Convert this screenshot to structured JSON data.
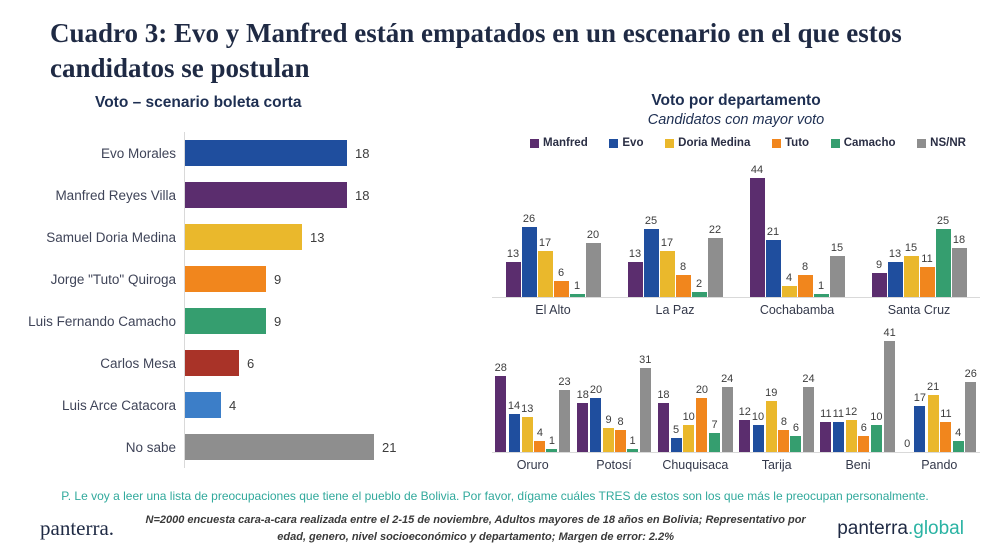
{
  "slide": {
    "title": "Cuadro 3: Evo y Manfred están empatados en un escenario en el que estos candidatos se postulan",
    "question_note": "P. Le voy a leer una lista de preocupaciones que tiene el pueblo de Bolivia. Por favor, dígame cuáles TRES de estos son los que más le preocupan personalmente.",
    "footer": {
      "logo_left": "panterra.",
      "methodology": "N=2000 encuesta cara-a-cara realizada entre el 2-15 de noviembre, Adultos mayores de 18 años en Bolivia; Representativo por edad, genero, nivel socioeconómico y departamento; Margen de error: 2.2%",
      "logo_right_name": "panterra",
      "logo_right_tld": ".global"
    }
  },
  "colors": {
    "title_navy": "#1f2a44",
    "chart_navy": "#1e2f52",
    "teal_accent": "#31a99c",
    "axis_gray": "#d9d9d9"
  },
  "chart_data": [
    {
      "type": "bar",
      "orientation": "horizontal",
      "title": "Voto – scenario boleta corta",
      "categories": [
        "Evo Morales",
        "Manfred Reyes Villa",
        "Samuel Doria Medina",
        "Jorge \"Tuto\" Quiroga",
        "Luis Fernando Camacho",
        "Carlos Mesa",
        "Luis Arce Catacora",
        "No sabe"
      ],
      "values": [
        18,
        18,
        13,
        9,
        9,
        6,
        4,
        21
      ],
      "bar_colors": [
        "#1f4e9e",
        "#5b2d6e",
        "#eab82c",
        "#f1861d",
        "#359e6f",
        "#a93328",
        "#3c7ec8",
        "#8e8e8e"
      ],
      "xlim": [
        0,
        22
      ],
      "data_labels": true,
      "grid": false
    },
    {
      "type": "bar",
      "grouped": true,
      "title": "Voto por departamento",
      "subtitle": "Candidatos con mayor voto",
      "legend": [
        "Manfred",
        "Evo",
        "Doria Medina",
        "Tuto",
        "Camacho",
        "NS/NR"
      ],
      "series_colors": [
        "#5b2d6e",
        "#1f4e9e",
        "#eab82c",
        "#f1861d",
        "#359e6f",
        "#8e8e8e"
      ],
      "legend_position": "top",
      "ylim": [
        0,
        45
      ],
      "data_labels": true,
      "grid": false,
      "rows": [
        {
          "categories": [
            "El Alto",
            "La Paz",
            "Cochabamba",
            "Santa Cruz"
          ],
          "values": [
            [
              13,
              26,
              17,
              6,
              1,
              20
            ],
            [
              13,
              25,
              17,
              8,
              2,
              22
            ],
            [
              44,
              21,
              4,
              8,
              1,
              15
            ],
            [
              9,
              13,
              15,
              11,
              25,
              18
            ]
          ]
        },
        {
          "categories": [
            "Oruro",
            "Potosí",
            "Chuquisaca",
            "Tarija",
            "Beni",
            "Pando"
          ],
          "values": [
            [
              28,
              14,
              13,
              4,
              1,
              23
            ],
            [
              18,
              20,
              9,
              8,
              1,
              31
            ],
            [
              18,
              5,
              10,
              20,
              7,
              24
            ],
            [
              12,
              10,
              19,
              8,
              6,
              24
            ],
            [
              11,
              11,
              12,
              6,
              10,
              41
            ],
            [
              0,
              17,
              21,
              11,
              4,
              26
            ]
          ]
        }
      ]
    }
  ]
}
